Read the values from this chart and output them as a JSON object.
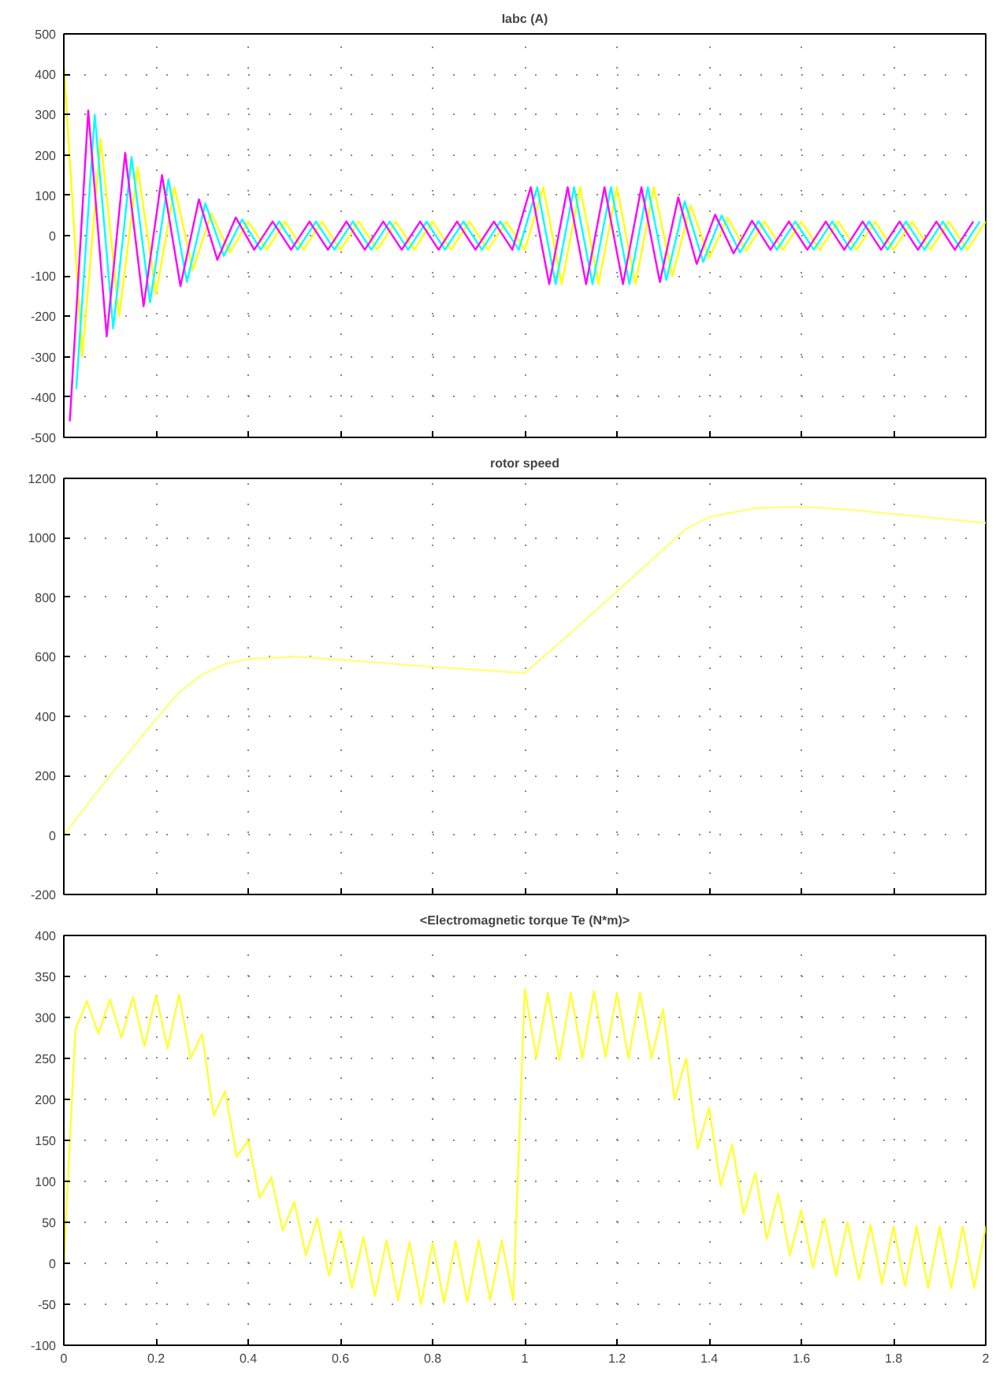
{
  "chart_data": [
    {
      "type": "line",
      "title": "Iabc (A)",
      "xlim": [
        0,
        2
      ],
      "xticks": [
        0,
        0.2,
        0.4,
        0.6,
        0.8,
        1,
        1.2,
        1.4,
        1.6,
        1.8,
        2
      ],
      "ylim": [
        -500,
        500
      ],
      "yticks": [
        -500,
        -400,
        -300,
        -200,
        -100,
        0,
        100,
        200,
        300,
        400,
        500
      ],
      "grid": true,
      "tick_labels": "y",
      "series": [
        {
          "color": "#ffff00",
          "x": [
            0,
            0.04,
            0.08,
            0.12,
            0.16,
            0.2,
            0.24,
            0.28,
            0.32,
            0.36,
            0.4,
            0.44,
            0.48,
            0.52,
            0.56,
            0.6,
            0.64,
            0.68,
            0.72,
            0.76,
            0.8,
            0.84,
            0.88,
            0.92,
            0.96,
            1.0,
            1.04,
            1.08,
            1.12,
            1.16,
            1.2,
            1.24,
            1.28,
            1.32,
            1.36,
            1.4,
            1.44,
            1.48,
            1.52,
            1.56,
            1.6,
            1.64,
            1.68,
            1.72,
            1.76,
            1.8,
            1.84,
            1.88,
            1.92,
            1.96,
            2.0
          ],
          "values": [
            420,
            -300,
            240,
            -200,
            170,
            -145,
            120,
            -85,
            55,
            -42,
            35,
            -35,
            35,
            -35,
            35,
            -35,
            35,
            -35,
            35,
            -35,
            35,
            -35,
            35,
            -35,
            35,
            -35,
            120,
            -120,
            120,
            -120,
            120,
            -120,
            120,
            -100,
            75,
            -55,
            45,
            -38,
            35,
            -35,
            35,
            -35,
            35,
            -35,
            35,
            -35,
            35,
            -35,
            35,
            -35,
            35
          ]
        },
        {
          "color": "#00ffff",
          "x": [
            0.027,
            0.067,
            0.107,
            0.147,
            0.187,
            0.227,
            0.267,
            0.307,
            0.347,
            0.387,
            0.427,
            0.467,
            0.507,
            0.547,
            0.587,
            0.627,
            0.667,
            0.707,
            0.747,
            0.787,
            0.827,
            0.867,
            0.907,
            0.947,
            0.987,
            1.027,
            1.067,
            1.107,
            1.147,
            1.187,
            1.227,
            1.267,
            1.307,
            1.347,
            1.387,
            1.427,
            1.467,
            1.507,
            1.547,
            1.587,
            1.627,
            1.667,
            1.707,
            1.747,
            1.787,
            1.827,
            1.867,
            1.907,
            1.947,
            1.987
          ],
          "values": [
            -380,
            300,
            -230,
            195,
            -165,
            140,
            -115,
            80,
            -50,
            40,
            -35,
            35,
            -35,
            35,
            -35,
            35,
            -35,
            35,
            -35,
            35,
            -35,
            35,
            -35,
            35,
            -35,
            120,
            -120,
            120,
            -120,
            120,
            -120,
            120,
            -110,
            85,
            -65,
            50,
            -42,
            36,
            -35,
            35,
            -35,
            35,
            -35,
            35,
            -35,
            35,
            -35,
            35,
            -35,
            35
          ]
        },
        {
          "color": "#ff00ff",
          "x": [
            0.013,
            0.053,
            0.093,
            0.133,
            0.173,
            0.213,
            0.253,
            0.293,
            0.333,
            0.373,
            0.413,
            0.453,
            0.493,
            0.533,
            0.573,
            0.613,
            0.653,
            0.693,
            0.733,
            0.773,
            0.813,
            0.853,
            0.893,
            0.933,
            0.973,
            1.013,
            1.053,
            1.093,
            1.133,
            1.173,
            1.213,
            1.253,
            1.293,
            1.333,
            1.373,
            1.413,
            1.453,
            1.493,
            1.533,
            1.573,
            1.613,
            1.653,
            1.693,
            1.733,
            1.773,
            1.813,
            1.853,
            1.893,
            1.933,
            1.973
          ],
          "values": [
            -460,
            310,
            -250,
            205,
            -175,
            150,
            -125,
            90,
            -60,
            45,
            -35,
            35,
            -35,
            35,
            -35,
            35,
            -35,
            35,
            -35,
            35,
            -35,
            35,
            -35,
            35,
            -35,
            120,
            -120,
            120,
            -120,
            120,
            -120,
            120,
            -115,
            95,
            -70,
            52,
            -44,
            37,
            -35,
            35,
            -35,
            35,
            -35,
            35,
            -35,
            35,
            -35,
            35,
            -35,
            35
          ]
        }
      ]
    },
    {
      "type": "line",
      "title": "rotor speed",
      "xlim": [
        0,
        2
      ],
      "xticks": [
        0,
        0.2,
        0.4,
        0.6,
        0.8,
        1,
        1.2,
        1.4,
        1.6,
        1.8,
        2
      ],
      "ylim": [
        -200,
        1200
      ],
      "yticks": [
        -200,
        0,
        200,
        400,
        600,
        800,
        1000,
        1200
      ],
      "grid": true,
      "tick_labels": "y",
      "x": [
        0,
        0.1,
        0.2,
        0.25,
        0.3,
        0.35,
        0.4,
        0.5,
        0.6,
        0.7,
        0.8,
        0.9,
        1.0,
        1.1,
        1.2,
        1.3,
        1.35,
        1.4,
        1.5,
        1.6,
        1.7,
        1.8,
        1.9,
        2.0
      ],
      "series": [
        {
          "color": "#ffff80",
          "values": [
            0,
            200,
            390,
            480,
            540,
            575,
            592,
            600,
            590,
            578,
            566,
            555,
            545,
            680,
            820,
            960,
            1030,
            1070,
            1100,
            1105,
            1095,
            1080,
            1065,
            1050
          ]
        }
      ]
    },
    {
      "type": "line",
      "title": "<Electromagnetic torque Te (N*m)>",
      "xlim": [
        0,
        2
      ],
      "xticks": [
        0,
        0.2,
        0.4,
        0.6,
        0.8,
        1,
        1.2,
        1.4,
        1.6,
        1.8,
        2
      ],
      "ylim": [
        -100,
        400
      ],
      "yticks": [
        -100,
        -50,
        0,
        50,
        100,
        150,
        200,
        250,
        300,
        350,
        400
      ],
      "grid": true,
      "x": [
        0,
        0.025,
        0.05,
        0.075,
        0.1,
        0.125,
        0.15,
        0.175,
        0.2,
        0.225,
        0.25,
        0.275,
        0.3,
        0.325,
        0.35,
        0.375,
        0.4,
        0.425,
        0.45,
        0.475,
        0.5,
        0.525,
        0.55,
        0.575,
        0.6,
        0.625,
        0.65,
        0.675,
        0.7,
        0.725,
        0.75,
        0.775,
        0.8,
        0.825,
        0.85,
        0.875,
        0.9,
        0.925,
        0.95,
        0.975,
        1.0,
        1.025,
        1.05,
        1.075,
        1.1,
        1.125,
        1.15,
        1.175,
        1.2,
        1.225,
        1.25,
        1.275,
        1.3,
        1.325,
        1.35,
        1.375,
        1.4,
        1.425,
        1.45,
        1.475,
        1.5,
        1.525,
        1.55,
        1.575,
        1.6,
        1.625,
        1.65,
        1.675,
        1.7,
        1.725,
        1.75,
        1.775,
        1.8,
        1.825,
        1.85,
        1.875,
        1.9,
        1.925,
        1.95,
        1.975,
        2.0
      ],
      "series": [
        {
          "color": "#ffff33",
          "values": [
            0,
            285,
            320,
            280,
            322,
            275,
            325,
            265,
            327,
            262,
            328,
            250,
            280,
            180,
            210,
            130,
            150,
            80,
            105,
            40,
            75,
            10,
            55,
            -15,
            40,
            -30,
            32,
            -40,
            28,
            -45,
            26,
            -50,
            25,
            -48,
            27,
            -47,
            28,
            -45,
            28,
            -45,
            335,
            250,
            330,
            248,
            330,
            250,
            332,
            252,
            330,
            250,
            330,
            250,
            310,
            200,
            250,
            140,
            190,
            95,
            145,
            60,
            110,
            30,
            85,
            10,
            65,
            -5,
            55,
            -15,
            50,
            -20,
            47,
            -25,
            45,
            -28,
            45,
            -30,
            45,
            -30,
            45,
            -30,
            45
          ]
        }
      ]
    }
  ]
}
